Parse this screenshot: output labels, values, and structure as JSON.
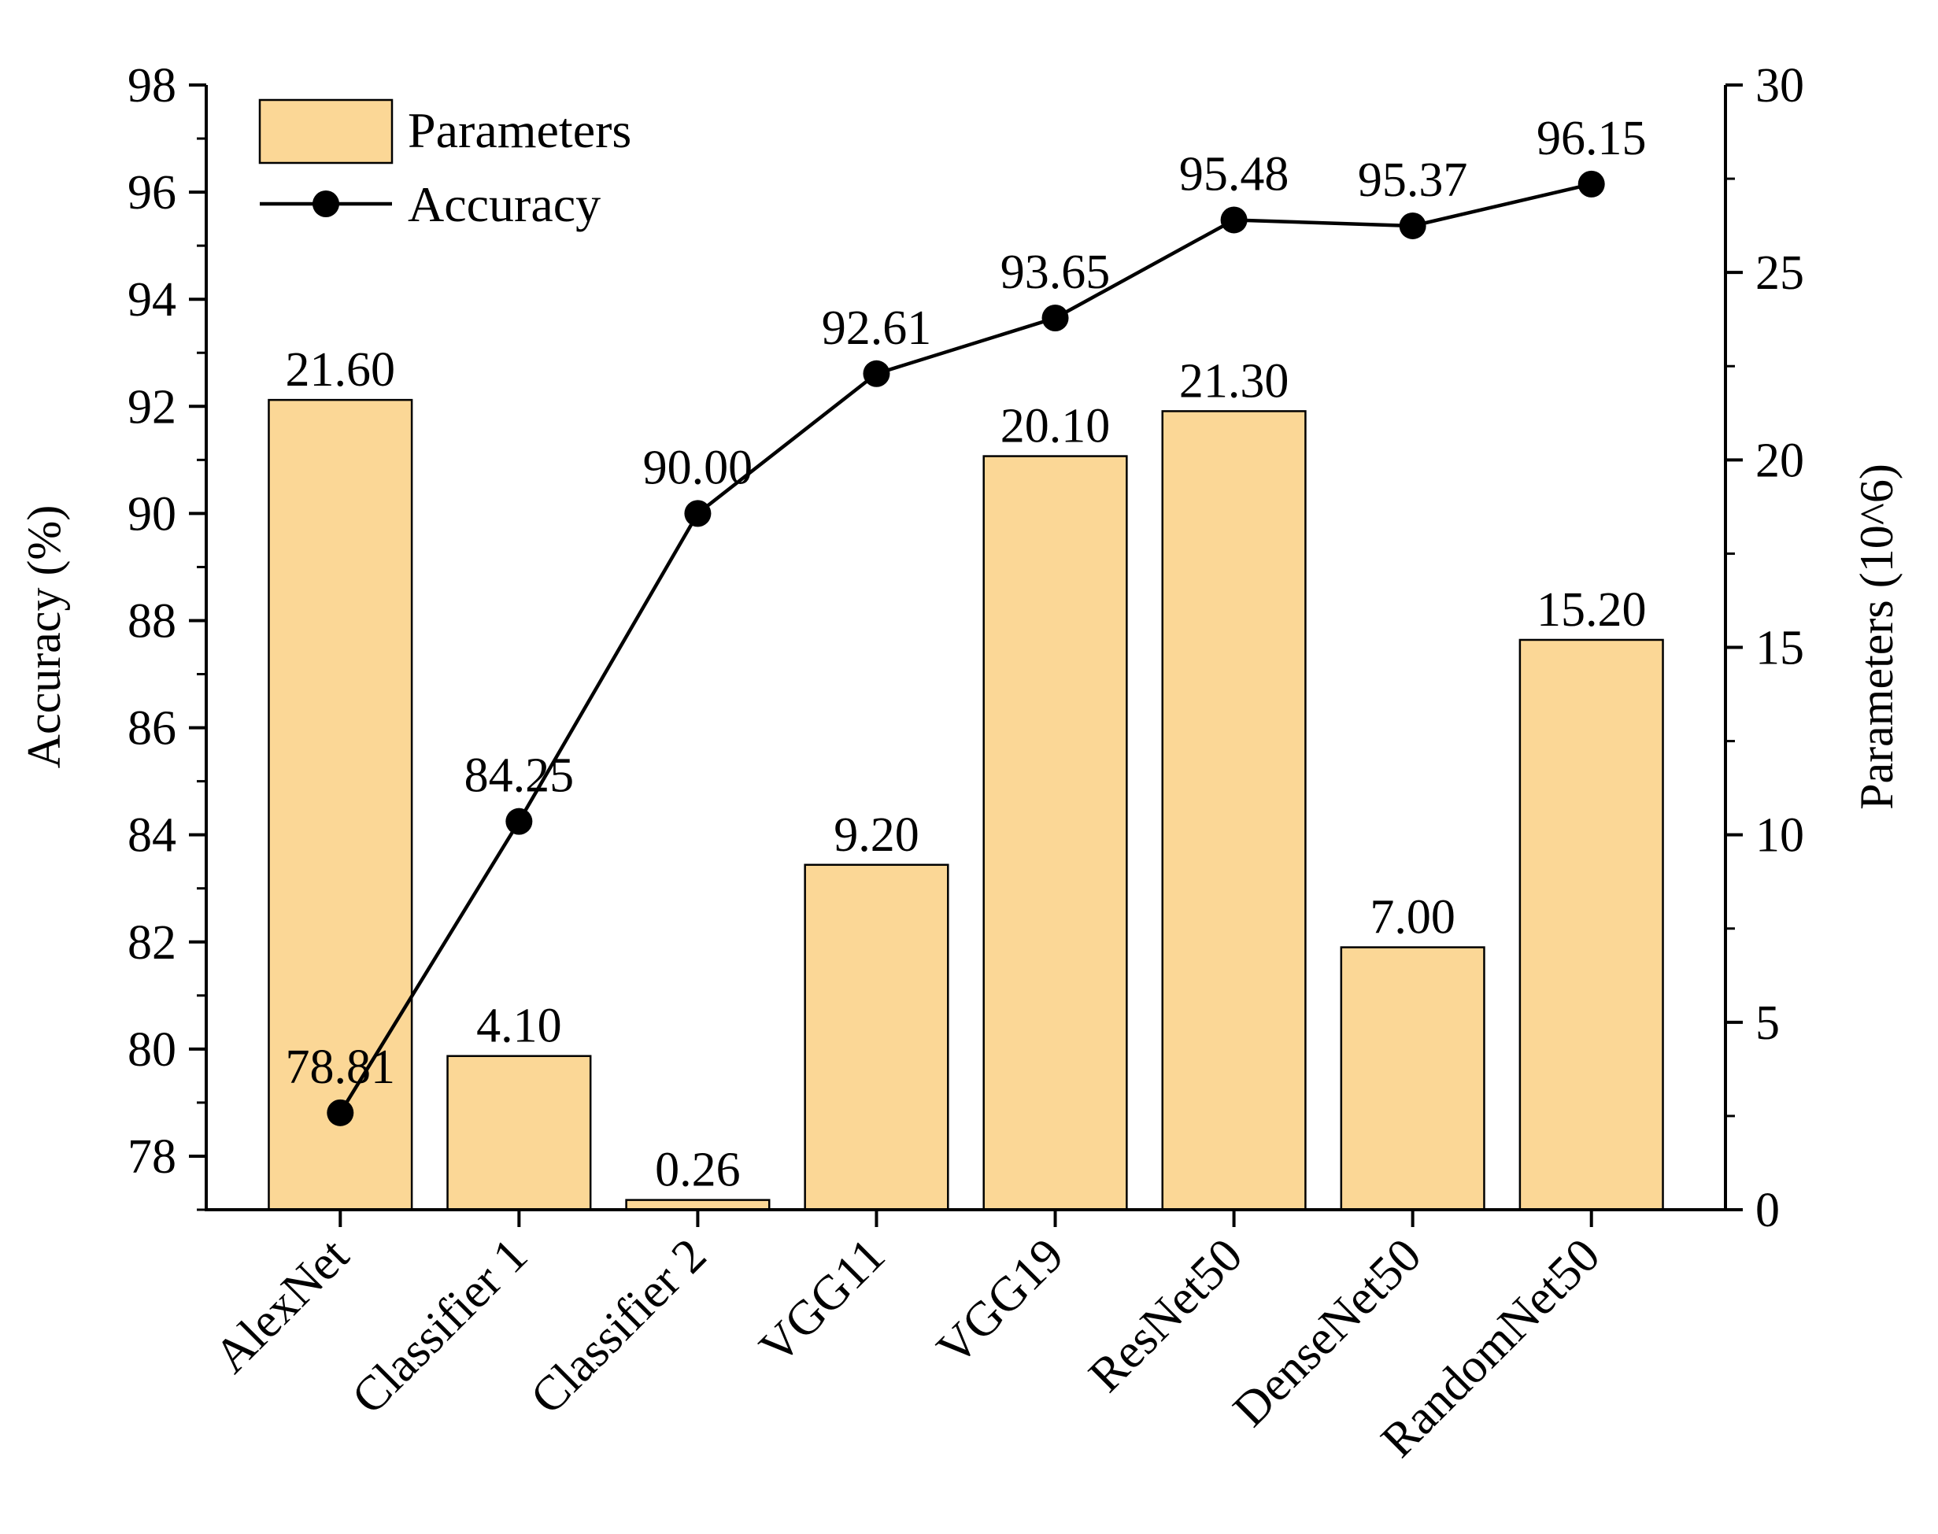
{
  "chart_data": {
    "type": "bar",
    "categories": [
      "AlexNet",
      "Classifier 1",
      "Classifier 2",
      "VGG11",
      "VGG19",
      "ResNet50",
      "DenseNet50",
      "RandomNet50"
    ],
    "series": [
      {
        "name": "Parameters",
        "type": "bar",
        "axis": "right",
        "values": [
          21.6,
          4.1,
          0.26,
          9.2,
          20.1,
          21.3,
          7.0,
          15.2
        ],
        "labels": [
          "21.60",
          "4.10",
          "0.26",
          "9.20",
          "20.10",
          "21.30",
          "7.00",
          "15.20"
        ]
      },
      {
        "name": "Accuracy",
        "type": "line",
        "axis": "left",
        "values": [
          78.81,
          84.25,
          90.0,
          92.61,
          93.65,
          95.48,
          95.37,
          96.15
        ],
        "labels": [
          "78.81",
          "84.25",
          "90.00",
          "92.61",
          "93.65",
          "95.48",
          "95.37",
          "96.15"
        ]
      }
    ],
    "ylabel": "Accuracy (%)",
    "y2label": "Parameters (10^6)",
    "xlabel": "",
    "ylim": [
      77,
      98
    ],
    "y2lim": [
      0,
      30
    ],
    "y_ticks": [
      "78",
      "80",
      "82",
      "84",
      "86",
      "88",
      "90",
      "92",
      "94",
      "96",
      "98"
    ],
    "y2_ticks": [
      "0",
      "5",
      "10",
      "15",
      "20",
      "25",
      "30"
    ],
    "legend": [
      "Parameters",
      "Accuracy"
    ],
    "legend_position": "top-left",
    "grid": false,
    "colors": {
      "bar_fill": "#fbd796",
      "bar_stroke": "#000000",
      "line": "#000000",
      "marker": "#000000"
    }
  }
}
